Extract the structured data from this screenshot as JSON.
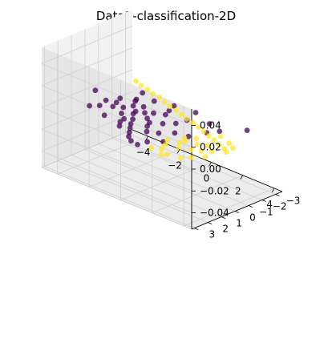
{
  "chart_data": {
    "type": "scatter",
    "title": "Data3-classification-2D",
    "projection": "3d",
    "grid": true,
    "colors": {
      "class_0": "#440154",
      "class_1": "#fde725",
      "pane_left": "#f2f2f2",
      "pane_right": "#e6e6e6",
      "pane_floor": "#ececec",
      "grid": "#d0d0d0",
      "axis": "#000000"
    },
    "axes": {
      "x": {
        "range": [
          -5,
          4.5
        ],
        "ticks": [
          "−4",
          "−2",
          "0",
          "2",
          "4"
        ]
      },
      "y": {
        "range": [
          -3.5,
          3.2
        ],
        "ticks": [
          "−3",
          "−2",
          "−1",
          "0",
          "1",
          "2",
          "3"
        ]
      },
      "z": {
        "range": [
          -0.055,
          0.055
        ],
        "ticks": [
          "−0.04",
          "−0.02",
          "0.00",
          "0.02",
          "0.04"
        ]
      }
    },
    "series": [
      {
        "class": 0,
        "description": "dark purple cluster, mostly negative x",
        "points": [
          [
            -4.6,
            -0.3,
            0
          ],
          [
            -3.5,
            0.2,
            0
          ],
          [
            -3.2,
            -0.5,
            0
          ],
          [
            -3.0,
            0.0,
            0
          ],
          [
            -2.8,
            0.5,
            0
          ],
          [
            -2.6,
            -1.0,
            0
          ],
          [
            -2.4,
            0.2,
            0
          ],
          [
            -2.2,
            -0.3,
            0
          ],
          [
            -2.0,
            0.8,
            0
          ],
          [
            -1.8,
            -0.6,
            0
          ],
          [
            -1.6,
            0.4,
            0
          ],
          [
            -1.5,
            1.2,
            0
          ],
          [
            -1.3,
            -0.1,
            0
          ],
          [
            -1.2,
            0.9,
            0
          ],
          [
            -1.0,
            -0.4,
            0
          ],
          [
            -0.9,
            1.4,
            0
          ],
          [
            -0.8,
            0.3,
            0
          ],
          [
            -0.6,
            1.8,
            0
          ],
          [
            -0.5,
            -0.7,
            0
          ],
          [
            -0.4,
            0.6,
            0
          ],
          [
            -0.3,
            2.2,
            0
          ],
          [
            -0.2,
            1.0,
            0
          ],
          [
            0.0,
            2.6,
            0
          ],
          [
            0.1,
            0.2,
            0
          ],
          [
            0.2,
            1.5,
            0
          ],
          [
            0.4,
            2.9,
            0
          ],
          [
            0.5,
            -0.3,
            0
          ],
          [
            0.7,
            1.2,
            0
          ],
          [
            1.0,
            2.4,
            0
          ],
          [
            1.2,
            0.6,
            0
          ],
          [
            -2.9,
            -1.8,
            0
          ],
          [
            -1.9,
            -1.5,
            0
          ],
          [
            -0.9,
            -1.8,
            0
          ],
          [
            0.3,
            -2.0,
            0
          ],
          [
            1.6,
            -1.5,
            0
          ],
          [
            2.5,
            -1.2,
            0
          ],
          [
            3.3,
            -2.3,
            0
          ],
          [
            -3.6,
            1.3,
            0
          ],
          [
            -2.4,
            1.6,
            0
          ],
          [
            -1.1,
            2.0,
            0
          ],
          [
            0.9,
            3.0,
            0
          ],
          [
            1.5,
            1.8,
            0
          ],
          [
            -2.5,
            -0.8,
            0
          ],
          [
            -1.7,
            0.1,
            0
          ],
          [
            -0.7,
            -1.2,
            0
          ],
          [
            0.6,
            -1.0,
            0
          ],
          [
            1.9,
            0.4,
            0
          ],
          [
            -3.3,
            0.9,
            0
          ],
          [
            -1.4,
            1.6,
            0
          ],
          [
            2.2,
            -0.6,
            0
          ]
        ]
      },
      {
        "class": 1,
        "description": "yellow cluster, long diagonal band plus right-side mass",
        "points": [
          [
            -4.0,
            -2.6,
            0
          ],
          [
            -3.5,
            -2.4,
            0
          ],
          [
            -3.0,
            -2.3,
            0
          ],
          [
            -2.5,
            -2.1,
            0
          ],
          [
            -2.0,
            -2.0,
            0
          ],
          [
            -1.5,
            -1.8,
            0
          ],
          [
            -1.0,
            -1.6,
            0
          ],
          [
            -0.5,
            -1.5,
            0
          ],
          [
            0.0,
            -1.3,
            0
          ],
          [
            0.5,
            -1.1,
            0
          ],
          [
            1.0,
            -1.0,
            0
          ],
          [
            1.5,
            -0.8,
            0
          ],
          [
            2.0,
            -0.6,
            0
          ],
          [
            2.5,
            -0.4,
            0
          ],
          [
            3.0,
            -0.2,
            0
          ],
          [
            3.5,
            0.0,
            0
          ],
          [
            4.0,
            0.2,
            0
          ],
          [
            4.3,
            0.4,
            0
          ],
          [
            1.5,
            1.5,
            0
          ],
          [
            1.8,
            2.0,
            0
          ],
          [
            2.0,
            2.5,
            0
          ],
          [
            2.2,
            1.0,
            0
          ],
          [
            2.5,
            1.8,
            0
          ],
          [
            2.8,
            0.8,
            0
          ],
          [
            3.0,
            1.5,
            0
          ],
          [
            3.2,
            0.5,
            0
          ],
          [
            3.4,
            1.2,
            0
          ],
          [
            3.6,
            2.2,
            0
          ],
          [
            2.6,
            2.8,
            0
          ],
          [
            3.8,
            0.9,
            0
          ],
          [
            4.0,
            1.6,
            0
          ],
          [
            2.3,
            0.3,
            0
          ],
          [
            1.9,
            0.7,
            0
          ],
          [
            2.9,
            -0.8,
            0
          ],
          [
            3.7,
            -0.5,
            0
          ],
          [
            4.2,
            -0.2,
            0
          ],
          [
            1.6,
            2.8,
            0
          ],
          [
            2.4,
            3.0,
            0
          ],
          [
            3.3,
            2.6,
            0
          ],
          [
            2.1,
            1.3,
            0
          ]
        ]
      }
    ]
  }
}
